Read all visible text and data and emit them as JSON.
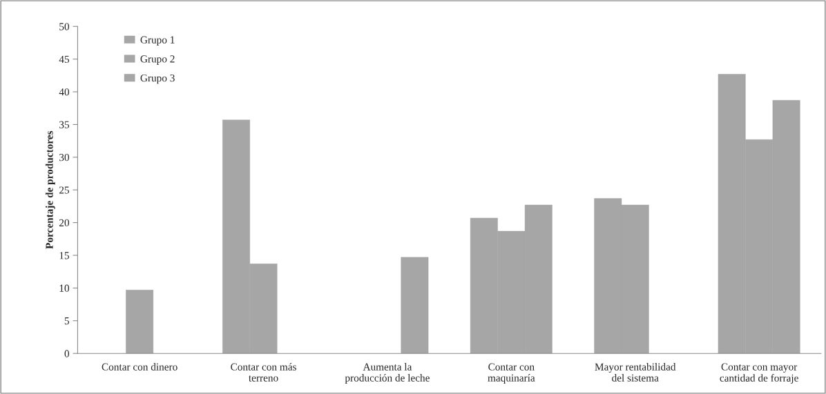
{
  "chart_data": {
    "type": "bar",
    "ylabel": "Porcentaje de productores",
    "categories": [
      "Contar con dinero",
      "Contar con más\nterreno",
      "Aumenta la\nproducción de leche",
      "Contar con\nmaquinaría",
      "Mayor rentabilidad\ndel sistema",
      "Contar con mayor\ncantidad de forraje"
    ],
    "series": [
      {
        "name": "Grupo 1",
        "color": "#a6a6a6",
        "values": [
          null,
          35.7,
          null,
          20.7,
          23.7,
          42.7
        ]
      },
      {
        "name": "Grupo 2",
        "color": "#a6a6a6",
        "values": [
          9.7,
          13.7,
          null,
          18.7,
          22.7,
          32.7
        ]
      },
      {
        "name": "Grupo 3",
        "color": "#a6a6a6",
        "values": [
          null,
          null,
          14.7,
          22.7,
          null,
          38.7
        ]
      }
    ],
    "ylim": [
      0,
      50
    ],
    "yticks": [
      0,
      5,
      10,
      15,
      20,
      25,
      30,
      35,
      40,
      45,
      50
    ],
    "grid": false,
    "legend": "top left"
  }
}
